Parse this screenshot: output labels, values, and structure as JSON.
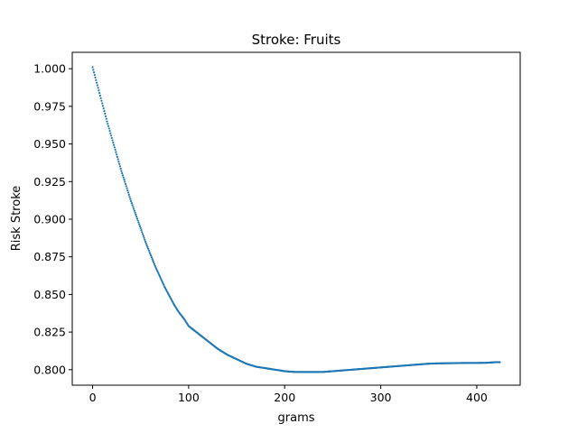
{
  "chart_data": {
    "type": "scatter",
    "title": "Stroke: Fruits",
    "xlabel": "grams",
    "ylabel": "Risk Stroke",
    "xlim": [
      -21.2,
      445.2
    ],
    "ylim": [
      0.7897,
      1.0109
    ],
    "xticks": [
      0,
      100,
      200,
      300,
      400
    ],
    "xtick_labels": [
      "0",
      "100",
      "200",
      "300",
      "400"
    ],
    "yticks": [
      0.8,
      0.825,
      0.85,
      0.875,
      0.9,
      0.925,
      0.95,
      0.975,
      1.0
    ],
    "ytick_labels": [
      "0.800",
      "0.825",
      "0.850",
      "0.875",
      "0.900",
      "0.925",
      "0.950",
      "0.975",
      "1.000"
    ],
    "grid": false,
    "marker_color": "#1f77b4",
    "series": [
      {
        "points": [
          [
            0,
            1.001
          ],
          [
            5,
            0.989
          ],
          [
            10,
            0.977
          ],
          [
            15,
            0.965
          ],
          [
            20,
            0.954
          ],
          [
            25,
            0.943
          ],
          [
            30,
            0.932
          ],
          [
            35,
            0.922
          ],
          [
            40,
            0.912
          ],
          [
            45,
            0.903
          ],
          [
            50,
            0.894
          ],
          [
            55,
            0.885
          ],
          [
            60,
            0.877
          ],
          [
            65,
            0.869
          ],
          [
            70,
            0.862
          ],
          [
            75,
            0.855
          ],
          [
            80,
            0.849
          ],
          [
            85,
            0.843
          ],
          [
            90,
            0.838
          ],
          [
            95,
            0.834
          ],
          [
            100,
            0.829
          ],
          [
            110,
            0.824
          ],
          [
            120,
            0.819
          ],
          [
            130,
            0.814
          ],
          [
            140,
            0.81
          ],
          [
            150,
            0.807
          ],
          [
            160,
            0.804
          ],
          [
            170,
            0.802
          ],
          [
            180,
            0.801
          ],
          [
            190,
            0.8
          ],
          [
            200,
            0.799
          ],
          [
            210,
            0.7985
          ],
          [
            220,
            0.7985
          ],
          [
            230,
            0.7985
          ],
          [
            240,
            0.7985
          ],
          [
            250,
            0.799
          ],
          [
            260,
            0.7995
          ],
          [
            270,
            0.8
          ],
          [
            280,
            0.8005
          ],
          [
            290,
            0.801
          ],
          [
            300,
            0.8015
          ],
          [
            310,
            0.802
          ],
          [
            320,
            0.8025
          ],
          [
            330,
            0.803
          ],
          [
            340,
            0.8035
          ],
          [
            350,
            0.804
          ],
          [
            360,
            0.8042
          ],
          [
            370,
            0.8043
          ],
          [
            380,
            0.8044
          ],
          [
            390,
            0.8045
          ],
          [
            400,
            0.8045
          ],
          [
            410,
            0.8046
          ],
          [
            420,
            0.805
          ],
          [
            424,
            0.805
          ]
        ]
      }
    ]
  }
}
